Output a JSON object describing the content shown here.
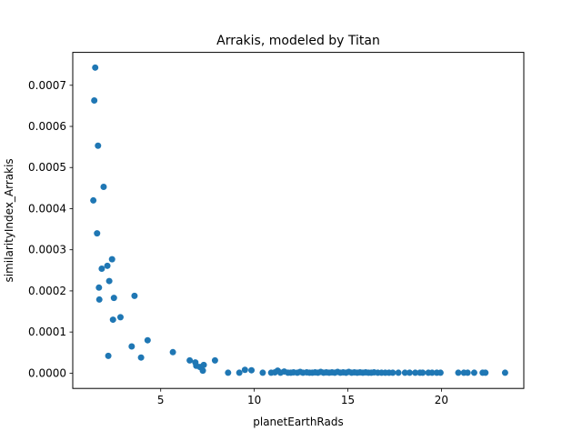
{
  "chart_data": {
    "type": "scatter",
    "title": "Arrakis, modeled by Titan",
    "xlabel": "planetEarthRads",
    "ylabel": "similarityIndex_Arrakis",
    "xlim": [
      0.3,
      24.4
    ],
    "ylim": [
      -3.72e-05,
      0.00078
    ],
    "xticks": [
      5,
      10,
      15,
      20
    ],
    "xtick_labels": [
      "5",
      "10",
      "15",
      "20"
    ],
    "yticks": [
      0.0,
      0.0001,
      0.0002,
      0.0003,
      0.0004,
      0.0005,
      0.0006,
      0.0007
    ],
    "ytick_labels": [
      "0.0000",
      "0.0001",
      "0.0002",
      "0.0003",
      "0.0004",
      "0.0005",
      "0.0006",
      "0.0007"
    ],
    "grid": false,
    "legend": "none",
    "marker_color": "#1f77b4",
    "points": [
      [
        1.5,
        0.000743
      ],
      [
        1.45,
        0.000663
      ],
      [
        1.65,
        0.000553
      ],
      [
        1.4,
        0.00042
      ],
      [
        1.95,
        0.000453
      ],
      [
        1.6,
        0.00034
      ],
      [
        2.4,
        0.000277
      ],
      [
        2.15,
        0.000261
      ],
      [
        1.85,
        0.000254
      ],
      [
        2.25,
        0.000224
      ],
      [
        1.7,
        0.000208
      ],
      [
        3.6,
        0.000188
      ],
      [
        2.5,
        0.000183
      ],
      [
        1.72,
        0.000179
      ],
      [
        2.85,
        0.000136
      ],
      [
        2.45,
        0.00013
      ],
      [
        4.3,
        8e-05
      ],
      [
        3.45,
        6.5e-05
      ],
      [
        5.65,
        5.1e-05
      ],
      [
        2.2,
        4.2e-05
      ],
      [
        3.95,
        3.8e-05
      ],
      [
        7.9,
        3.1e-05
      ],
      [
        6.55,
        3.1e-05
      ],
      [
        6.85,
        2.6e-05
      ],
      [
        6.9,
        1.8e-05
      ],
      [
        7.3,
        2e-05
      ],
      [
        7.1,
        1.5e-05
      ],
      [
        7.25,
        6e-06
      ],
      [
        9.5,
        8e-06
      ],
      [
        9.85,
        7e-06
      ],
      [
        8.6,
        1e-06
      ],
      [
        9.2,
        1e-06
      ],
      [
        10.45,
        1e-06
      ],
      [
        10.9,
        1e-06
      ],
      [
        11.1,
        2e-06
      ],
      [
        11.25,
        6e-06
      ],
      [
        11.4,
        1e-06
      ],
      [
        11.6,
        4e-06
      ],
      [
        11.8,
        1e-06
      ],
      [
        11.95,
        1e-06
      ],
      [
        12.1,
        2e-06
      ],
      [
        12.3,
        1e-06
      ],
      [
        12.45,
        3e-06
      ],
      [
        12.6,
        1e-06
      ],
      [
        12.8,
        2e-06
      ],
      [
        12.95,
        1e-06
      ],
      [
        13.1,
        1e-06
      ],
      [
        13.25,
        2e-06
      ],
      [
        13.4,
        1e-06
      ],
      [
        13.55,
        3e-06
      ],
      [
        13.7,
        1e-06
      ],
      [
        13.85,
        2e-06
      ],
      [
        14.0,
        1e-06
      ],
      [
        14.15,
        2e-06
      ],
      [
        14.3,
        1e-06
      ],
      [
        14.45,
        3e-06
      ],
      [
        14.6,
        1e-06
      ],
      [
        14.75,
        2e-06
      ],
      [
        14.9,
        1e-06
      ],
      [
        15.05,
        3e-06
      ],
      [
        15.2,
        1e-06
      ],
      [
        15.35,
        2e-06
      ],
      [
        15.5,
        1e-06
      ],
      [
        15.65,
        2e-06
      ],
      [
        15.8,
        1e-06
      ],
      [
        15.95,
        2e-06
      ],
      [
        16.1,
        1e-06
      ],
      [
        16.25,
        1e-06
      ],
      [
        16.4,
        2e-06
      ],
      [
        16.6,
        1e-06
      ],
      [
        16.8,
        1e-06
      ],
      [
        17.0,
        1e-06
      ],
      [
        17.2,
        1e-06
      ],
      [
        17.4,
        1e-06
      ],
      [
        17.7,
        1e-06
      ],
      [
        18.05,
        1e-06
      ],
      [
        18.3,
        1e-06
      ],
      [
        18.6,
        1e-06
      ],
      [
        18.85,
        1e-06
      ],
      [
        19.0,
        1e-06
      ],
      [
        19.3,
        1e-06
      ],
      [
        19.5,
        1e-06
      ],
      [
        19.75,
        1e-06
      ],
      [
        19.95,
        1e-06
      ],
      [
        20.9,
        1e-06
      ],
      [
        21.2,
        1e-06
      ],
      [
        21.4,
        1e-06
      ],
      [
        21.75,
        1e-06
      ],
      [
        22.2,
        1e-06
      ],
      [
        22.35,
        1e-06
      ],
      [
        23.4,
        1e-06
      ]
    ]
  }
}
